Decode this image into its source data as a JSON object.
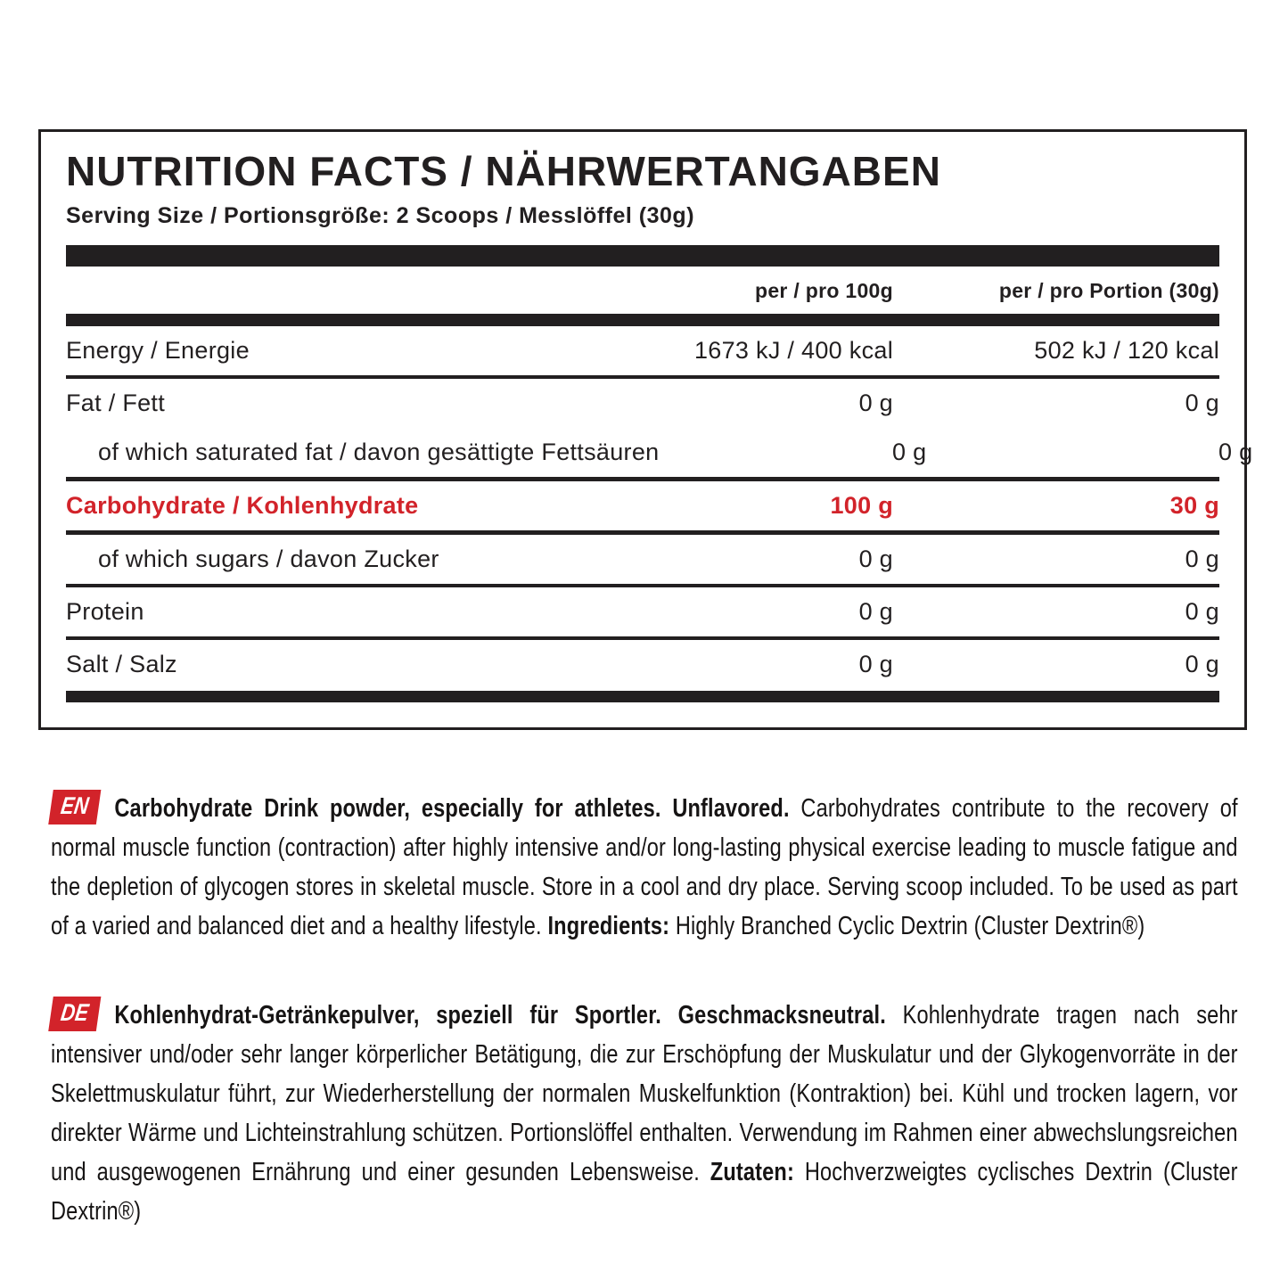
{
  "colors": {
    "ink": "#221f20",
    "accent_red": "#d2232a",
    "badge_text": "#ffffff"
  },
  "panel": {
    "title": "NUTRITION FACTS / NÄHRWERTANGABEN",
    "serving_size": "Serving Size / Portionsgröße: 2 Scoops / Messlöffel (30g)"
  },
  "table": {
    "columns": [
      "per / pro 100g",
      "per / pro Portion (30g)"
    ],
    "rows": [
      {
        "label": "Energy / Energie",
        "per_100g": "1673 kJ / 400 kcal",
        "per_portion": "502 kJ / 120 kcal"
      },
      {
        "label": "Fat / Fett",
        "per_100g": "0 g",
        "per_portion": "0 g"
      },
      {
        "label": "of which saturated fat / davon gesättigte Fettsäuren",
        "per_100g": "0 g",
        "per_portion": "0 g"
      },
      {
        "label": "Carbohydrate / Kohlenhydrate",
        "per_100g": "100 g",
        "per_portion": "30 g"
      },
      {
        "label": "of which sugars / davon Zucker",
        "per_100g": "0 g",
        "per_portion": "0 g"
      },
      {
        "label": "Protein",
        "per_100g": "0 g",
        "per_portion": "0 g"
      },
      {
        "label": "Salt / Salz",
        "per_100g": "0 g",
        "per_portion": "0 g"
      }
    ]
  },
  "paragraphs": {
    "en": {
      "badge": "EN",
      "lead": "Carbohydrate Drink powder, especially for athletes. Unflavored.",
      "body": " Carbohydrates contribute to the recovery of normal muscle function (contraction) after highly intensive and/or long-lasting physical exercise leading to muscle fatigue and the depletion of glycogen stores in skeletal muscle. Store in a cool and dry place. Serving scoop included. To be used as part of a varied and balanced diet and a healthy lifestyle. ",
      "ingredients_label": "Ingredients:",
      "ingredients": " Highly Branched Cyclic Dextrin (Cluster Dextrin®)"
    },
    "de": {
      "badge": "DE",
      "lead": "Kohlenhydrat-Getränkepulver, speziell für Sportler. Geschmacksneutral.",
      "body": " Kohlenhydrate tragen nach sehr intensiver und/oder sehr langer körperlicher Betätigung, die zur Erschöpfung der Muskulatur und der Glykogenvorräte in der Skelettmuskulatur führt, zur Wiederherstellung der normalen Muskelfunktion (Kontraktion) bei. Kühl und trocken lagern, vor direkter Wärme und Lichteinstrahlung schützen. Portionslöffel enthalten. Verwendung im Rahmen einer abwechslungsreichen und ausgewogenen Ernährung und einer gesunden Lebensweise. ",
      "ingredients_label": "Zutaten:",
      "ingredients": " Hochverzweigtes cyclisches Dextrin (Cluster Dextrin®)"
    }
  }
}
